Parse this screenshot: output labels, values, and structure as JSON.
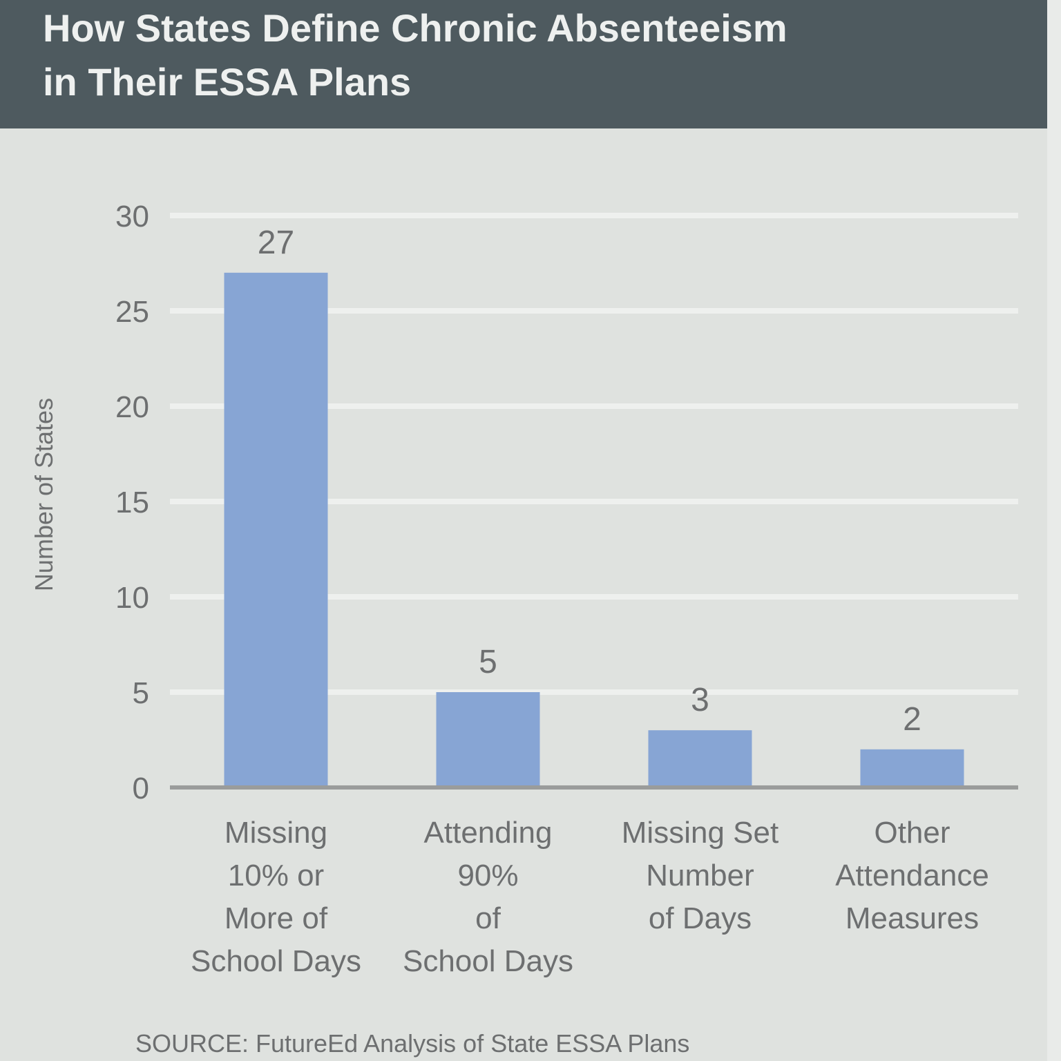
{
  "header": {
    "title": "How States Define Chronic Absenteeism\nin Their ESSA Plans"
  },
  "chart_data": {
    "type": "bar",
    "title": "How States Define Chronic Absenteeism in Their ESSA Plans",
    "ylabel": "Number of States",
    "xlabel": "",
    "ylim": [
      0,
      30
    ],
    "yticks": [
      0,
      5,
      10,
      15,
      20,
      25,
      30
    ],
    "grid": true,
    "categories": [
      "Missing 10% or More of School Days",
      "Attending 90% of School Days",
      "Missing Set Number of Days",
      "Other Attendance Measures"
    ],
    "category_lines": [
      [
        "Missing",
        "10% or",
        "More of",
        "School Days"
      ],
      [
        "Attending",
        "90%",
        "of",
        "School Days"
      ],
      [
        "Missing Set",
        "Number",
        "of Days"
      ],
      [
        "Other",
        "Attendance",
        "Measures"
      ]
    ],
    "values": [
      27,
      5,
      3,
      2
    ],
    "value_labels": [
      "27",
      "5",
      "3",
      "2"
    ],
    "bar_color": "#87a5d4",
    "gridline_color": "#eef0ee",
    "baseline_color": "#9a9c9b"
  },
  "source": "SOURCE: FutureEd Analysis of State ESSA Plans"
}
